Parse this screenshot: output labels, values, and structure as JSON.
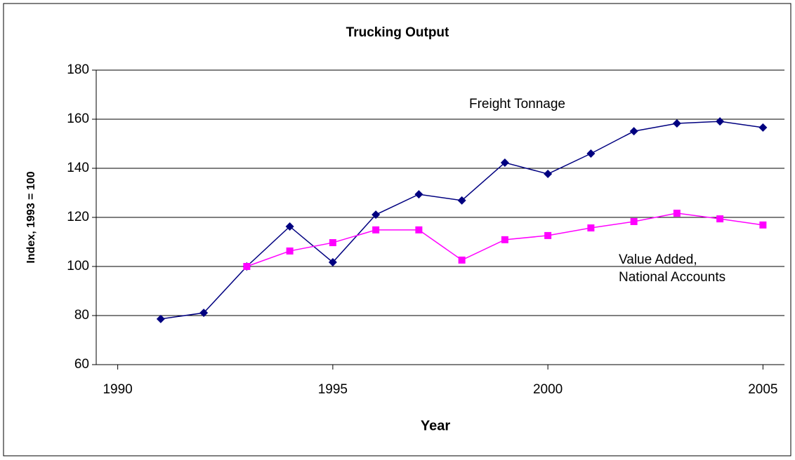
{
  "chart_data": {
    "type": "line",
    "title": "Trucking Output",
    "x_label": "Year",
    "y_label": "Index, 1993 = 100",
    "x": [
      1991,
      1992,
      1993,
      1994,
      1995,
      1996,
      1997,
      1998,
      1999,
      2000,
      2001,
      2002,
      2003,
      2004,
      2005
    ],
    "series": [
      {
        "color": "#000080",
        "marker": "diamond",
        "values": [
          78.6,
          81.1,
          100,
          116.3,
          101.7,
          121.1,
          129.4,
          126.9,
          142.3,
          137.7,
          146,
          155.1,
          158.3,
          159.1,
          156.6
        ]
      },
      {
        "color": "#ff00ff",
        "marker": "square",
        "values": [
          null,
          null,
          100,
          106.3,
          109.7,
          114.9,
          114.9,
          102.6,
          110.9,
          112.6,
          115.7,
          118.3,
          121.7,
          119.4,
          116.9
        ]
      }
    ],
    "annotations": [
      {
        "lines": [
          "Freight Tonnage"
        ]
      },
      {
        "lines": [
          "Value Added,",
          "National Accounts"
        ]
      }
    ],
    "xlim": [
      1989.5,
      2005.5
    ],
    "xticks": [
      1990,
      1995,
      2000,
      2005
    ],
    "ylim": [
      60,
      180
    ],
    "yticks": [
      60,
      80,
      100,
      120,
      140,
      160,
      180
    ],
    "grid": true
  }
}
